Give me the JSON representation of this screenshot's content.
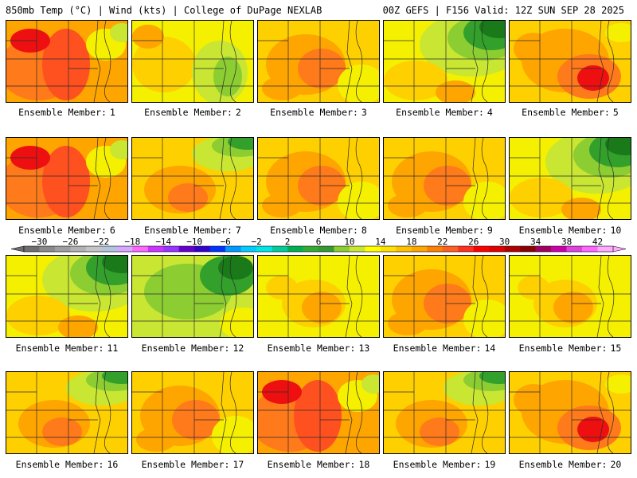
{
  "header": {
    "left": "850mb Temp (°C) | Wind (kts) | College of DuPage NEXLAB",
    "right": "00Z GEFS | F156 Valid: 12Z SUN SEP 28 2025"
  },
  "panel_label_prefix": "Ensemble Member:",
  "members": [
    {
      "number": "1",
      "theme": "hot"
    },
    {
      "number": "2",
      "theme": "mild-green"
    },
    {
      "number": "3",
      "theme": "warm"
    },
    {
      "number": "4",
      "theme": "cool-ne"
    },
    {
      "number": "5",
      "theme": "hot-se"
    },
    {
      "number": "6",
      "theme": "hot"
    },
    {
      "number": "7",
      "theme": "warm-ne"
    },
    {
      "number": "8",
      "theme": "warm"
    },
    {
      "number": "9",
      "theme": "warm"
    },
    {
      "number": "10",
      "theme": "cool-ne"
    },
    {
      "number": "11",
      "theme": "cool-ne"
    },
    {
      "number": "12",
      "theme": "cool"
    },
    {
      "number": "13",
      "theme": "mild"
    },
    {
      "number": "14",
      "theme": "warm"
    },
    {
      "number": "15",
      "theme": "mild"
    },
    {
      "number": "16",
      "theme": "warm-ne"
    },
    {
      "number": "17",
      "theme": "warm"
    },
    {
      "number": "18",
      "theme": "hot"
    },
    {
      "number": "19",
      "theme": "warm-ne"
    },
    {
      "number": "20",
      "theme": "hot-se"
    }
  ],
  "colorbar": {
    "tick_labels": [
      "−30",
      "−26",
      "−22",
      "−18",
      "−14",
      "−10",
      "−6",
      "−2",
      "2",
      "6",
      "10",
      "14",
      "18",
      "22",
      "26",
      "30",
      "34",
      "38",
      "42"
    ],
    "colors": [
      "#6e6e6e",
      "#8a8a8a",
      "#9e9e9e",
      "#b2b2b2",
      "#c4c4c4",
      "#b0c4de",
      "#d6a8ff",
      "#ff66ff",
      "#cc33ff",
      "#9933ff",
      "#6600cc",
      "#3300cc",
      "#0033ff",
      "#0099ff",
      "#00ccff",
      "#00e5e5",
      "#00cc99",
      "#00b050",
      "#33aa33",
      "#339933",
      "#8ccd32",
      "#c8e632",
      "#ffff00",
      "#ffe000",
      "#ffc000",
      "#ffa500",
      "#ff8000",
      "#ff6020",
      "#ff3020",
      "#ff0000",
      "#e00000",
      "#b00000",
      "#8b0000",
      "#a00060",
      "#cc00aa",
      "#e040e0",
      "#ff66ff",
      "#ffaaff"
    ]
  },
  "palette": {
    "yellow": "#f5f000",
    "yellow_orange": "#ffd000",
    "orange": "#ffa500",
    "dark_orange": "#ff7a1a",
    "red_orange": "#ff5020",
    "red": "#ee1010",
    "yellow_green": "#c8e632",
    "light_green": "#8ccd32",
    "green": "#33a02c",
    "dark_green": "#1a7a1a"
  }
}
